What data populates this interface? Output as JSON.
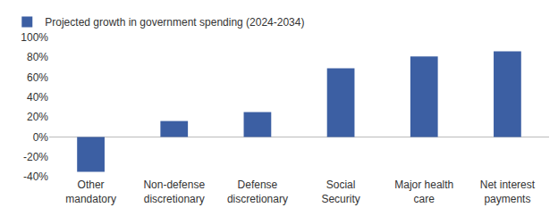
{
  "chart_data": {
    "type": "bar",
    "categories": [
      "Other mandatory",
      "Non-defense discretionary",
      "Defense discretionary",
      "Social Security",
      "Major health care",
      "Net interest payments"
    ],
    "series": [
      {
        "name": "Projected growth in government spending (2024-2034)",
        "color": "#3c5fa3",
        "values": [
          -35,
          16,
          25,
          69,
          81,
          86
        ]
      }
    ],
    "ylim": [
      -40,
      100
    ],
    "yticks": [
      {
        "value": -40,
        "label": "-40%"
      },
      {
        "value": -20,
        "label": "-20%"
      },
      {
        "value": 0,
        "label": "0%"
      },
      {
        "value": 20,
        "label": "20%"
      },
      {
        "value": 40,
        "label": "40%"
      },
      {
        "value": 60,
        "label": "60%"
      },
      {
        "value": 80,
        "label": "80%"
      },
      {
        "value": 100,
        "label": "100%"
      }
    ],
    "grid": false,
    "legend": "top-left"
  }
}
